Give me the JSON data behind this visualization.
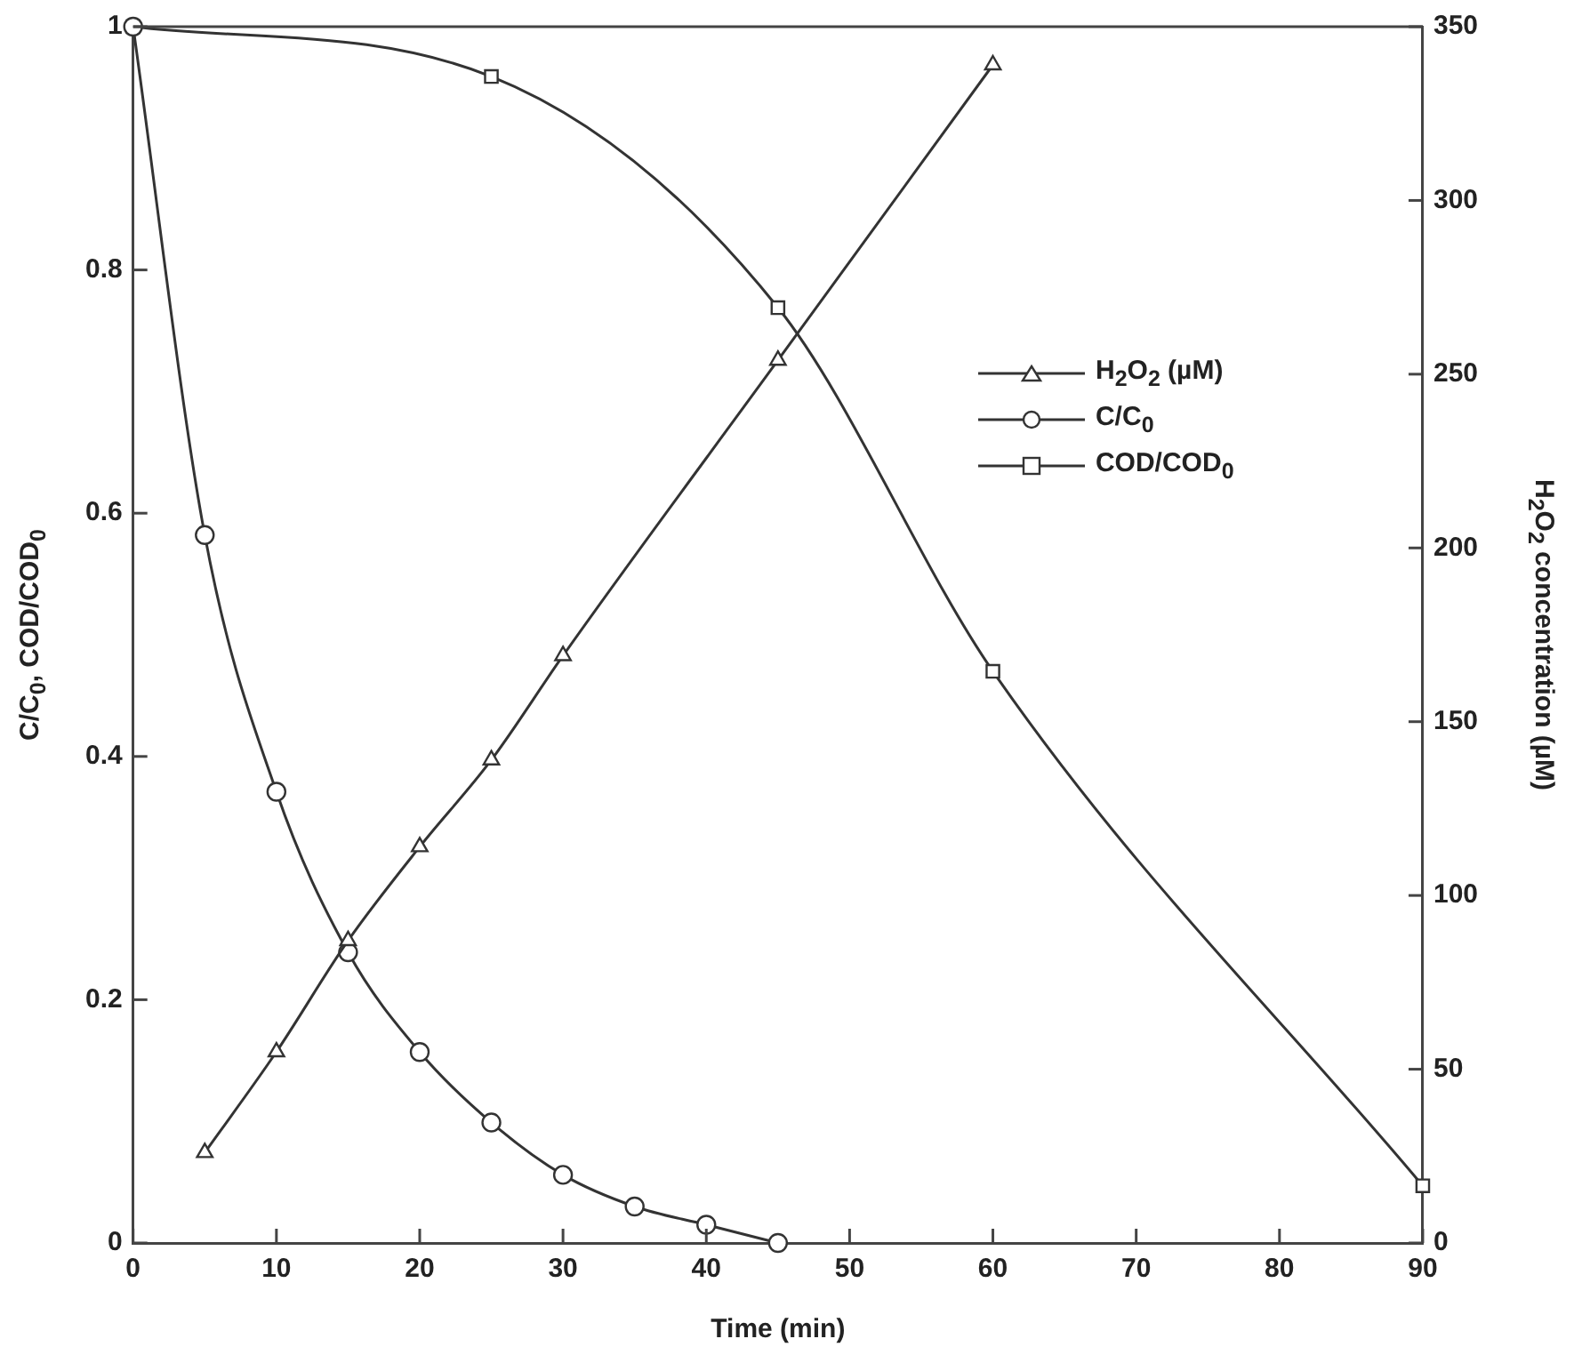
{
  "chart_data": {
    "type": "line",
    "xlabel": "Time (min)",
    "ylabel": "C/C$_{0}$, COD/COD$_{0}$",
    "y2label": "H$_{2}$O$_{2}$ concentration (µM)",
    "xlim": [
      0,
      90
    ],
    "xticks": [
      0,
      10,
      20,
      30,
      40,
      50,
      60,
      70,
      80,
      90
    ],
    "ylim": [
      0,
      1
    ],
    "yticks": [
      0,
      0.2,
      0.4,
      0.6,
      0.8,
      1
    ],
    "y2lim": [
      0,
      350
    ],
    "y2ticks": [
      0,
      50,
      100,
      150,
      200,
      250,
      300,
      350
    ],
    "grid": false,
    "legend": "right",
    "line_style": "solid",
    "series": [
      {
        "name": "H$_{2}$O$_{2}$ (µM)",
        "color": "#333333",
        "axis": "y2",
        "marker": "triangle",
        "x": [
          5,
          10,
          15,
          20,
          25,
          30,
          45,
          60
        ],
        "values": [
          26,
          55,
          87,
          114,
          139,
          169,
          254,
          339
        ]
      },
      {
        "name": "C/C$_{0}$",
        "color": "#333333",
        "marker": "circle",
        "x": [
          0,
          5,
          10,
          15,
          20,
          25,
          30,
          35,
          40,
          45
        ],
        "values": [
          1,
          0.582,
          0.371,
          0.239,
          0.157,
          0.099,
          0.056,
          0.03,
          0.015,
          0
        ]
      },
      {
        "name": "COD/COD$_{0}$",
        "color": "#333333",
        "marker": "square",
        "x": [
          0,
          25,
          45,
          60,
          90
        ],
        "values": [
          1,
          0.959,
          0.769,
          0.47,
          0.047
        ]
      }
    ]
  }
}
